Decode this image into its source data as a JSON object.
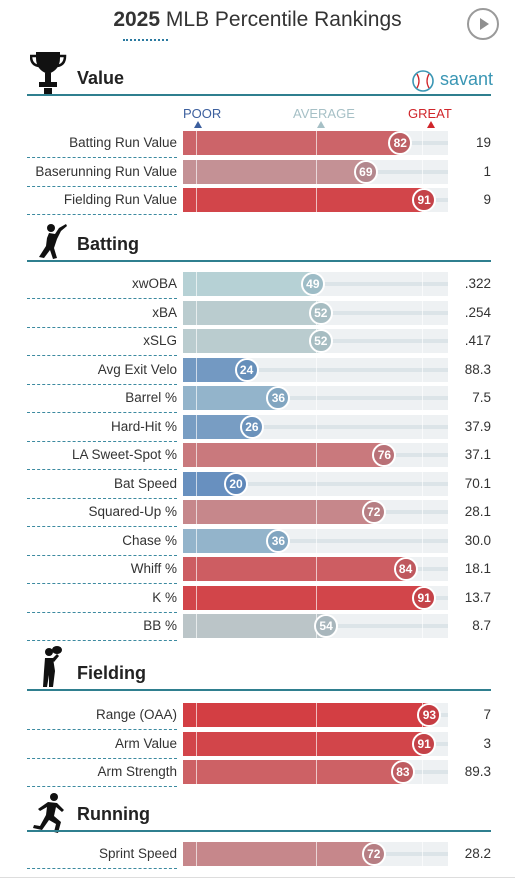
{
  "header": {
    "year": "2025",
    "title": "MLB Percentile Rankings",
    "play_icon": "play-icon",
    "brand": "savant",
    "brand_icon": "baseball-icon"
  },
  "scale": {
    "poor": "POOR",
    "average": "AVERAGE",
    "great": "GREAT",
    "poor_color": "#3c5f9e",
    "average_color": "#a6c0c6",
    "great_color": "#d0262b"
  },
  "chart_data": {
    "type": "bar",
    "value_range": [
      0,
      100
    ],
    "colors": {
      "low": "#3263af",
      "mid": "#b9d3d6",
      "high": "#d7262b"
    },
    "sections": [
      {
        "name": "Value",
        "icon": "trophy-icon",
        "rows": [
          {
            "label": "Batting Run Value",
            "percentile": 82,
            "stat": "19"
          },
          {
            "label": "Baserunning Run Value",
            "percentile": 69,
            "stat": "1"
          },
          {
            "label": "Fielding Run Value",
            "percentile": 91,
            "stat": "9"
          }
        ]
      },
      {
        "name": "Batting",
        "icon": "batter-icon",
        "rows": [
          {
            "label": "xwOBA",
            "percentile": 49,
            "stat": ".322"
          },
          {
            "label": "xBA",
            "percentile": 52,
            "stat": ".254"
          },
          {
            "label": "xSLG",
            "percentile": 52,
            "stat": ".417"
          },
          {
            "label": "Avg Exit Velo",
            "percentile": 24,
            "stat": "88.3"
          },
          {
            "label": "Barrel %",
            "percentile": 36,
            "stat": "7.5"
          },
          {
            "label": "Hard-Hit %",
            "percentile": 26,
            "stat": "37.9"
          },
          {
            "label": "LA Sweet-Spot %",
            "percentile": 76,
            "stat": "37.1"
          },
          {
            "label": "Bat Speed",
            "percentile": 20,
            "stat": "70.1"
          },
          {
            "label": "Squared-Up %",
            "percentile": 72,
            "stat": "28.1"
          },
          {
            "label": "Chase %",
            "percentile": 36,
            "stat": "30.0"
          },
          {
            "label": "Whiff %",
            "percentile": 84,
            "stat": "18.1"
          },
          {
            "label": "K %",
            "percentile": 91,
            "stat": "13.7"
          },
          {
            "label": "BB %",
            "percentile": 54,
            "stat": "8.7"
          }
        ]
      },
      {
        "name": "Fielding",
        "icon": "fielder-icon",
        "rows": [
          {
            "label": "Range (OAA)",
            "percentile": 93,
            "stat": "7"
          },
          {
            "label": "Arm Value",
            "percentile": 91,
            "stat": "3"
          },
          {
            "label": "Arm Strength",
            "percentile": 83,
            "stat": "89.3"
          }
        ]
      },
      {
        "name": "Running",
        "icon": "runner-icon",
        "rows": [
          {
            "label": "Sprint Speed",
            "percentile": 72,
            "stat": "28.2"
          }
        ]
      }
    ]
  }
}
